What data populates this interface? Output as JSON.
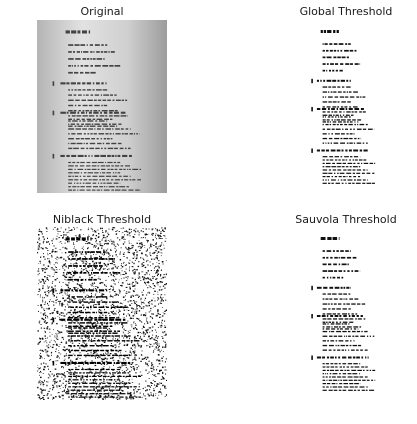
{
  "panels": [
    {
      "title": "Original"
    },
    {
      "title": "Global Threshold"
    },
    {
      "title": "Niblack Threshold"
    },
    {
      "title": "Sauvola Threshold"
    }
  ],
  "colors": {
    "ink": "#1a1a1a",
    "paper_light": "#e6e6e6",
    "paper_dark": "#9a9a9a",
    "background": "#ffffff"
  }
}
